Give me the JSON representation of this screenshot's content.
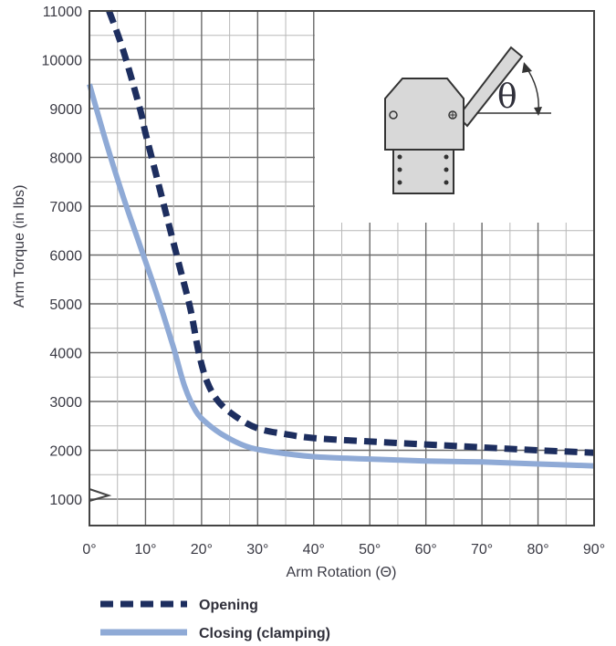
{
  "chart_data": {
    "type": "line",
    "xlabel": "Arm Rotation (Θ)",
    "ylabel": "Arm Torque (in lbs)",
    "xlim": [
      0,
      90
    ],
    "ylim": [
      1000,
      11000
    ],
    "x_ticks": [
      "0°",
      "10°",
      "20°",
      "30°",
      "40°",
      "50°",
      "60°",
      "70°",
      "80°",
      "90°"
    ],
    "y_ticks": [
      "1000",
      "2000",
      "3000",
      "4000",
      "5000",
      "6000",
      "7000",
      "8000",
      "9000",
      "10000",
      "11000"
    ],
    "axis_break": "y-axis below 1000",
    "grid": true,
    "inset_symbol": "θ",
    "inset_icon": "clamp-arm-icon",
    "legend_placement": "bottom",
    "series": [
      {
        "name": "Opening",
        "style": "dashed",
        "color": "#1d2e5f",
        "points": [
          [
            3.5,
            11000
          ],
          [
            6,
            10200
          ],
          [
            9,
            9000
          ],
          [
            10,
            8500
          ],
          [
            12,
            7600
          ],
          [
            14,
            6700
          ],
          [
            16,
            5800
          ],
          [
            18,
            4900
          ],
          [
            19.5,
            4000
          ],
          [
            21,
            3400
          ],
          [
            23,
            3000
          ],
          [
            26,
            2700
          ],
          [
            30,
            2450
          ],
          [
            35,
            2330
          ],
          [
            40,
            2250
          ],
          [
            50,
            2180
          ],
          [
            60,
            2120
          ],
          [
            70,
            2060
          ],
          [
            80,
            2000
          ],
          [
            90,
            1950
          ]
        ]
      },
      {
        "name": "Closing (clamping)",
        "style": "solid",
        "color": "#8faad6",
        "points": [
          [
            0,
            9500
          ],
          [
            3,
            8300
          ],
          [
            6,
            7200
          ],
          [
            9,
            6200
          ],
          [
            12,
            5200
          ],
          [
            15,
            4100
          ],
          [
            17,
            3300
          ],
          [
            19,
            2800
          ],
          [
            21,
            2550
          ],
          [
            24,
            2300
          ],
          [
            28,
            2080
          ],
          [
            32,
            1980
          ],
          [
            40,
            1870
          ],
          [
            50,
            1820
          ],
          [
            60,
            1780
          ],
          [
            70,
            1760
          ],
          [
            80,
            1720
          ],
          [
            90,
            1680
          ]
        ]
      }
    ]
  }
}
